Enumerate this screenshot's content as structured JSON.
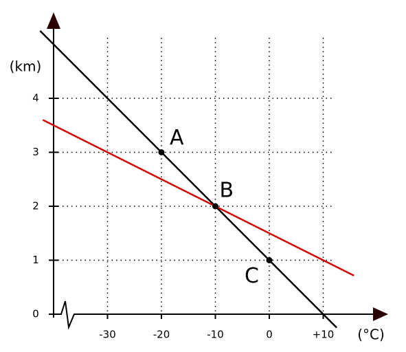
{
  "chart_data": {
    "type": "line",
    "x_label": "(°C)",
    "y_label": "(km)",
    "xlim": [
      -40,
      22
    ],
    "ylim": [
      0,
      5.6
    ],
    "xticks": [
      -30,
      -20,
      -10,
      0,
      {
        "value": 10,
        "label": "+10"
      }
    ],
    "yticks": [
      0,
      1,
      2,
      3,
      4
    ],
    "grid": true,
    "series": [
      {
        "color": "#000000",
        "x": [
          -42.5,
          12.5
        ],
        "values": [
          5.25,
          -0.25
        ]
      },
      {
        "color": "#d40000",
        "x": [
          -42,
          15.7
        ],
        "values": [
          3.6,
          0.715
        ]
      }
    ],
    "points": {
      "color": "#000000",
      "x": [
        -20,
        -10,
        0
      ],
      "values": [
        3,
        2,
        1
      ],
      "labels": [
        "A",
        "B",
        "C"
      ]
    }
  }
}
